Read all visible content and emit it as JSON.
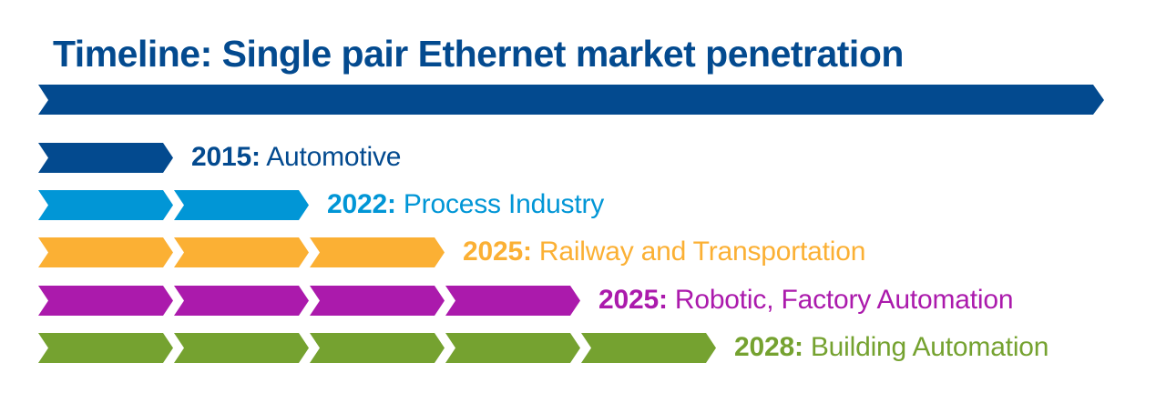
{
  "title": "Timeline: Single pair Ethernet market penetration",
  "colors": {
    "title": "#034a8f",
    "main_arrow": "#034a8f"
  },
  "milestones": [
    {
      "year": "2015:",
      "label": "Automotive",
      "segments": 1,
      "color": "#034a8f"
    },
    {
      "year": "2022:",
      "label": "Process Industry",
      "segments": 2,
      "color": "#0196d6"
    },
    {
      "year": "2025:",
      "label": "Railway and Transportation",
      "segments": 3,
      "color": "#fbb034"
    },
    {
      "year": "2025:",
      "label": "Robotic, Factory Automation",
      "segments": 4,
      "color": "#ab1aac"
    },
    {
      "year": "2028:",
      "label": "Building Automation",
      "segments": 5,
      "color": "#75a230"
    }
  ],
  "chart_data": {
    "type": "timeline",
    "title": "Timeline: Single pair Ethernet market penetration",
    "events": [
      {
        "year": 2015,
        "sector": "Automotive",
        "chevrons": 1
      },
      {
        "year": 2022,
        "sector": "Process Industry",
        "chevrons": 2
      },
      {
        "year": 2025,
        "sector": "Railway and Transportation",
        "chevrons": 3
      },
      {
        "year": 2025,
        "sector": "Robotic, Factory Automation",
        "chevrons": 4
      },
      {
        "year": 2028,
        "sector": "Building Automation",
        "chevrons": 5
      }
    ]
  }
}
